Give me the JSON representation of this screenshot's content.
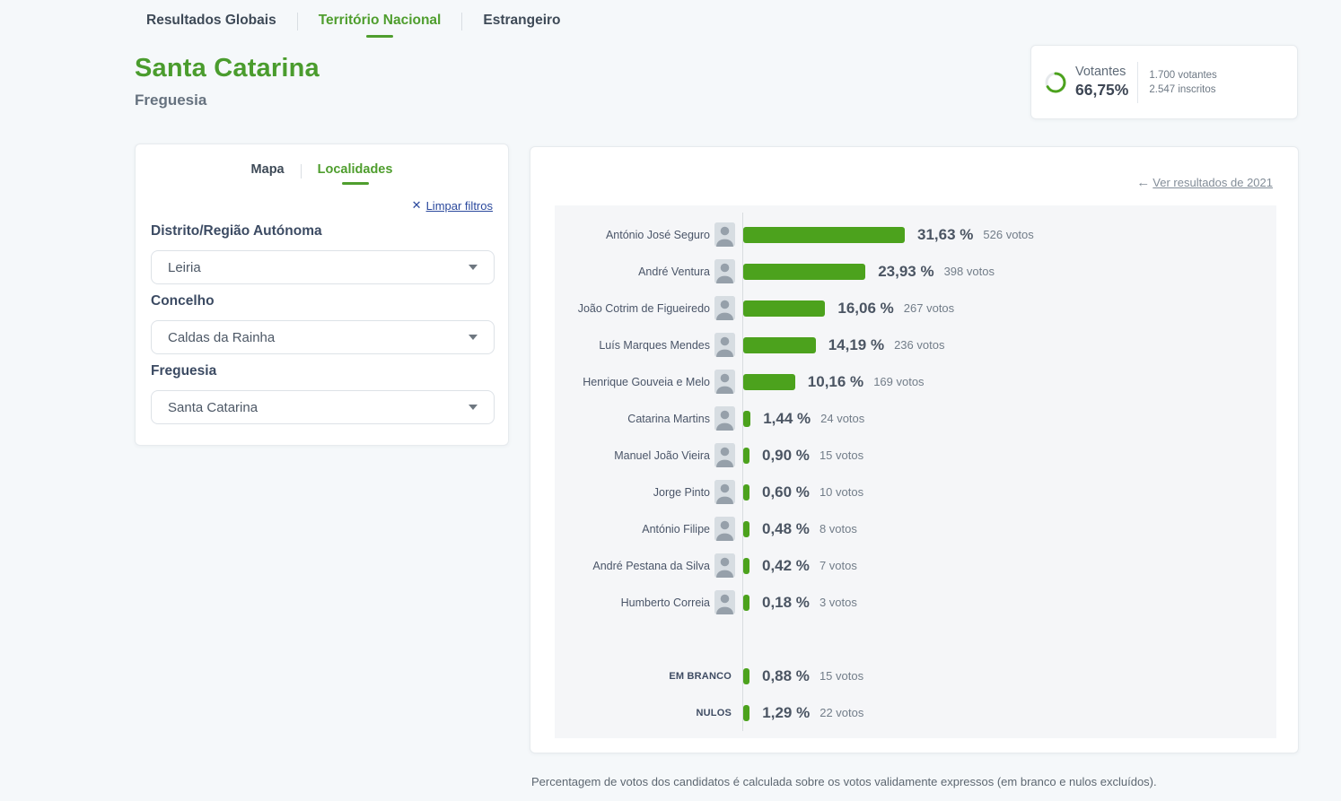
{
  "nav": {
    "tabs": [
      {
        "label": "Resultados Globais",
        "active": false
      },
      {
        "label": "Território Nacional",
        "active": true
      },
      {
        "label": "Estrangeiro",
        "active": false
      }
    ]
  },
  "header": {
    "title": "Santa Catarina",
    "subtitle": "Freguesia"
  },
  "turnout": {
    "label": "Votantes",
    "percent_label": "66,75%",
    "percent_value": 66.75,
    "voters": "1.700 votantes",
    "registered": "2.547 inscritos"
  },
  "filters": {
    "tab_mapa": "Mapa",
    "tab_localidades": "Localidades",
    "clear_label": "Limpar filtros",
    "district_label": "Distrito/Região Autónoma",
    "district_value": "Leiria",
    "municipality_label": "Concelho",
    "municipality_value": "Caldas da Rainha",
    "parish_label": "Freguesia",
    "parish_value": "Santa Catarina"
  },
  "results": {
    "back_link": "Ver resultados de 2021"
  },
  "chart_data": {
    "type": "bar",
    "orientation": "horizontal",
    "unit": "%",
    "candidates": [
      {
        "name": "António José Seguro",
        "percent": 31.63,
        "percent_label": "31,63 %",
        "votes": 526,
        "votes_label": "526 votos"
      },
      {
        "name": "André Ventura",
        "percent": 23.93,
        "percent_label": "23,93 %",
        "votes": 398,
        "votes_label": "398 votos"
      },
      {
        "name": "João Cotrim de Figueiredo",
        "percent": 16.06,
        "percent_label": "16,06 %",
        "votes": 267,
        "votes_label": "267 votos"
      },
      {
        "name": "Luís Marques Mendes",
        "percent": 14.19,
        "percent_label": "14,19 %",
        "votes": 236,
        "votes_label": "236 votos"
      },
      {
        "name": "Henrique Gouveia e Melo",
        "percent": 10.16,
        "percent_label": "10,16 %",
        "votes": 169,
        "votes_label": "169 votos"
      },
      {
        "name": "Catarina Martins",
        "percent": 1.44,
        "percent_label": "1,44 %",
        "votes": 24,
        "votes_label": "24 votos"
      },
      {
        "name": "Manuel João Vieira",
        "percent": 0.9,
        "percent_label": "0,90 %",
        "votes": 15,
        "votes_label": "15 votos"
      },
      {
        "name": "Jorge Pinto",
        "percent": 0.6,
        "percent_label": "0,60 %",
        "votes": 10,
        "votes_label": "10 votos"
      },
      {
        "name": "António Filipe",
        "percent": 0.48,
        "percent_label": "0,48 %",
        "votes": 8,
        "votes_label": "8 votos"
      },
      {
        "name": "André Pestana da Silva",
        "percent": 0.42,
        "percent_label": "0,42 %",
        "votes": 7,
        "votes_label": "7 votos"
      },
      {
        "name": "Humberto Correia",
        "percent": 0.18,
        "percent_label": "0,18 %",
        "votes": 3,
        "votes_label": "3 votos"
      }
    ],
    "special": [
      {
        "name": "EM BRANCO",
        "percent": 0.88,
        "percent_label": "0,88 %",
        "votes": 15,
        "votes_label": "15 votos"
      },
      {
        "name": "NULOS",
        "percent": 1.29,
        "percent_label": "1,29 %",
        "votes": 22,
        "votes_label": "22 votos"
      }
    ],
    "bar_color": "#4ca21d",
    "axis_color": "#d8dcdf"
  },
  "footer": {
    "note": "Percentagem de votos dos candidatos é calculada sobre os votos validamente expressos (em branco e nulos excluídos)."
  },
  "colors": {
    "accent_green": "#4f9e2e",
    "bar_green": "#4ca21d",
    "link_blue": "#2b499d",
    "page_bg": "#f5f8fa"
  }
}
